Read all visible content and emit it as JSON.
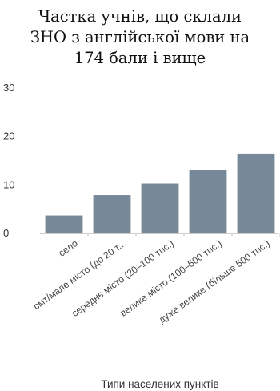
{
  "chart_data": {
    "type": "bar",
    "title_lines": [
      "Частка учнів, що склали",
      "ЗНО з англійської мови на",
      "174 бали і вище"
    ],
    "categories": [
      "село",
      "смт/мале місто (до 20 т...",
      "середнє місто (20–100 тис.)",
      "велике місто (100–500 тис.)",
      "дуже велике (більше 500 тис.)"
    ],
    "values": [
      3.7,
      7.9,
      10.3,
      13.1,
      16.5
    ],
    "xlabel": "Типи населених пунктів",
    "ylabel": "",
    "ylim": [
      0,
      30
    ],
    "yticks": [
      0,
      10,
      20,
      30
    ],
    "grid": false,
    "bar_color": "#778899",
    "axis_color": "#cccccc"
  }
}
